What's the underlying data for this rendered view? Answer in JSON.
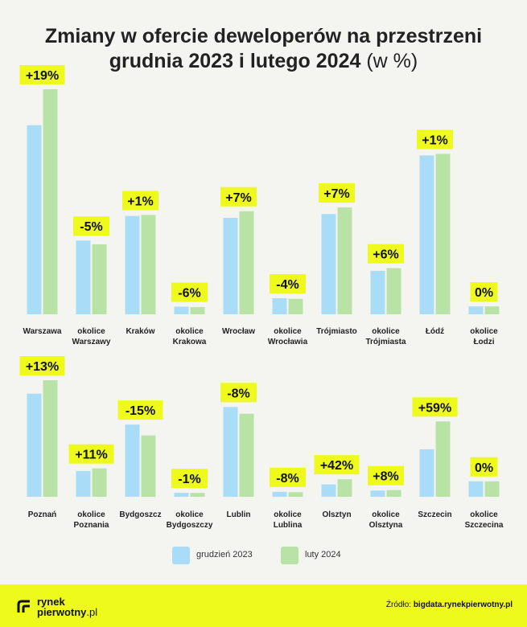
{
  "title": {
    "line1": "Zmiany w ofercie deweloperów na przestrzeni",
    "line2": "grudnia 2023 i lutego 2024",
    "unit": "(w %)"
  },
  "colors": {
    "series1": "#a9dcf7",
    "series2": "#b9e3a6",
    "badge": "#eef91c",
    "background": "#f4f4f0"
  },
  "legend": {
    "items": [
      {
        "label": "grudzień 2023",
        "color": "#a9dcf7"
      },
      {
        "label": "luty 2024",
        "color": "#b9e3a6"
      }
    ]
  },
  "chart_data": [
    {
      "type": "bar",
      "categories": [
        "Warszawa",
        "okolice Warszawy",
        "Kraków",
        "okolice Krakowa",
        "Wrocław",
        "okolice Wrocławia",
        "Trójmiasto",
        "okolice Trójmiasta",
        "Łódź",
        "okolice Łodzi"
      ],
      "series": [
        {
          "name": "grudzień 2023",
          "values": [
            1000,
            390,
            520,
            40,
            510,
            85,
            530,
            230,
            840,
            42
          ]
        },
        {
          "name": "luty 2024",
          "values": [
            1190,
            370,
            525,
            38,
            545,
            82,
            565,
            244,
            848,
            42
          ]
        }
      ],
      "change_labels": [
        "+19%",
        "-5%",
        "+1%",
        "-6%",
        "+7%",
        "-4%",
        "+7%",
        "+6%",
        "+1%",
        "0%"
      ],
      "ylim": [
        0,
        1250
      ]
    },
    {
      "type": "bar",
      "categories": [
        "Poznań",
        "okolice Poznania",
        "Bydgoszcz",
        "okolice Bydgoszczy",
        "Lublin",
        "okolice Lublina",
        "Olsztyn",
        "okolice Olsztyna",
        "Szczecin",
        "okolice Szczecina"
      ],
      "series": [
        {
          "name": "grudzień 2023",
          "values": [
            1000,
            250,
            700,
            38,
            870,
            48,
            120,
            60,
            460,
            150
          ]
        },
        {
          "name": "luty 2024",
          "values": [
            1130,
            275,
            595,
            38,
            805,
            44,
            170,
            65,
            730,
            150
          ]
        }
      ],
      "change_labels": [
        "+13%",
        "+11%",
        "-15%",
        "-1%",
        "-8%",
        "-8%",
        "+42%",
        "+8%",
        "+59%",
        "0%"
      ],
      "ylim": [
        0,
        1310
      ]
    }
  ],
  "footer": {
    "logo_line1": "rynek",
    "logo_line2": "pierwotny",
    "logo_suffix": ".pl",
    "source_label": "Źródło:",
    "source_value": "bigdata.rynekpierwotny.pl"
  }
}
